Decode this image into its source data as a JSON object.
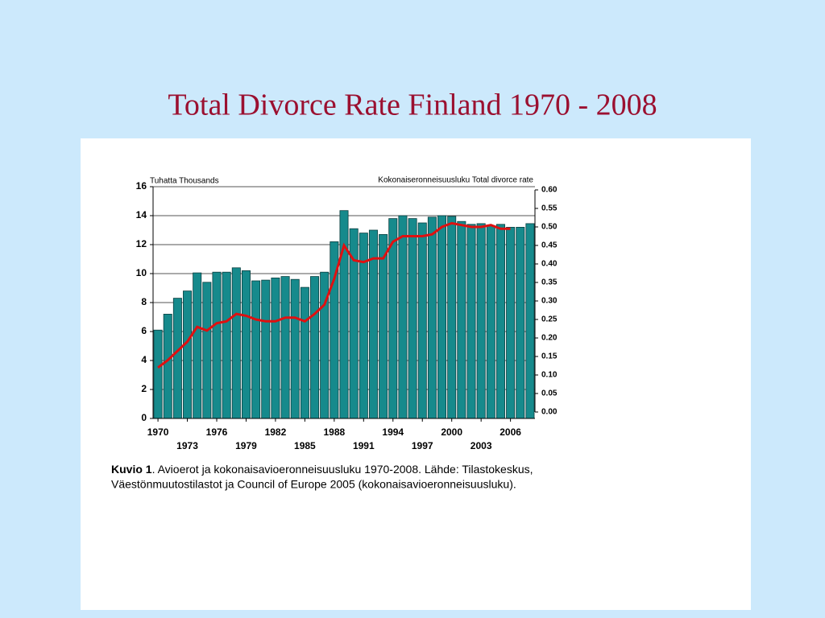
{
  "chart_data": {
    "type": "bar_line",
    "title": "Total Divorce Rate Finland 1970 - 2008",
    "y_label": "Tuhatta Thousands",
    "y2_label": "Kokonaiseronneisuusluku Total divorce rate",
    "x": [
      1970,
      1971,
      1972,
      1973,
      1974,
      1975,
      1976,
      1977,
      1978,
      1979,
      1980,
      1981,
      1982,
      1983,
      1984,
      1985,
      1986,
      1987,
      1988,
      1989,
      1990,
      1991,
      1992,
      1993,
      1994,
      1995,
      1996,
      1997,
      1998,
      1999,
      2000,
      2001,
      2002,
      2003,
      2004,
      2005,
      2006,
      2007,
      2008
    ],
    "xticks": [
      1970,
      1973,
      1976,
      1979,
      1982,
      1985,
      1988,
      1991,
      1994,
      1997,
      2000,
      2003,
      2006
    ],
    "series": [
      {
        "name": "Thousands",
        "type": "bar",
        "color": "#168a8c",
        "values": [
          6.1,
          7.2,
          8.3,
          8.8,
          10.05,
          9.4,
          10.1,
          10.1,
          10.4,
          10.2,
          9.5,
          9.55,
          9.7,
          9.8,
          9.6,
          9.05,
          9.8,
          10.1,
          12.2,
          14.35,
          13.1,
          12.8,
          13.0,
          12.7,
          13.8,
          14.0,
          13.8,
          13.5,
          13.9,
          14.0,
          13.95,
          13.6,
          13.4,
          13.45,
          13.3,
          13.4,
          13.2,
          13.2,
          13.45
        ]
      },
      {
        "name": "Total divorce rate",
        "type": "line",
        "axis": "y2",
        "color": "#e01010",
        "values": [
          0.12,
          0.14,
          0.165,
          0.19,
          0.23,
          0.22,
          0.24,
          0.245,
          0.265,
          0.26,
          0.25,
          0.245,
          0.245,
          0.255,
          0.255,
          0.245,
          0.265,
          0.29,
          0.36,
          0.45,
          0.41,
          0.405,
          0.415,
          0.415,
          0.46,
          0.475,
          0.475,
          0.475,
          0.48,
          0.5,
          0.51,
          0.505,
          0.5,
          0.5,
          0.505,
          0.495,
          0.495,
          null,
          null
        ]
      }
    ],
    "ylim": [
      0,
      16
    ],
    "yticks": [
      0,
      2,
      4,
      6,
      8,
      10,
      12,
      14,
      16
    ],
    "y2lim": [
      0,
      0.6
    ],
    "y2ticks": [
      {
        "value": 0,
        "label": "0.00"
      },
      0.05,
      {
        "value": 0.1,
        "label": "0.10"
      },
      0.15,
      {
        "value": 0.2,
        "label": "0.20"
      },
      0.25,
      {
        "value": 0.3,
        "label": "0.30"
      },
      0.35,
      {
        "value": 0.4,
        "label": "0.40"
      },
      0.45,
      {
        "value": 0.5,
        "label": "0.50"
      },
      0.55,
      {
        "value": 0.6,
        "label": "0.60"
      }
    ],
    "grid": true,
    "caption": {
      "label": "Kuvio 1",
      "lines": [
        ". Avioerot ja kokonaisavioeronneisuusluku 1970-2008. Lähde: Tilastokeskus,",
        "Väestönmuutostilastot ja Council of Europe 2005 (kokonaisavioeronneisuusluku)."
      ]
    }
  }
}
